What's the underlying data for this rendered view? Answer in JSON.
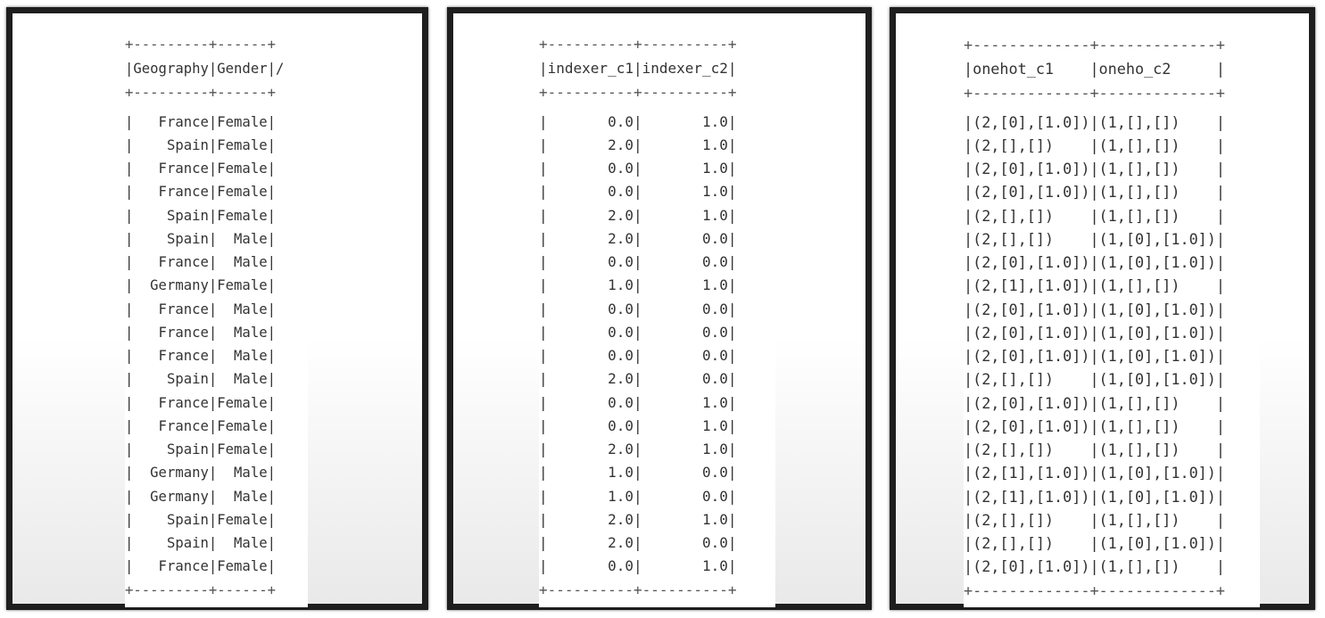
{
  "panels": [
    {
      "separator": "+---------+------+",
      "header": "|Geography|Gender|/",
      "rows": [
        "|   France|Female|",
        "|    Spain|Female|",
        "|   France|Female|",
        "|   France|Female|",
        "|    Spain|Female|",
        "|    Spain|  Male|",
        "|   France|  Male|",
        "|  Germany|Female|",
        "|   France|  Male|",
        "|   France|  Male|",
        "|   France|  Male|",
        "|    Spain|  Male|",
        "|   France|Female|",
        "|   France|Female|",
        "|    Spain|Female|",
        "|  Germany|  Male|",
        "|  Germany|  Male|",
        "|    Spain|Female|",
        "|    Spain|  Male|",
        "|   France|Female|"
      ]
    },
    {
      "separator": "+----------+----------+",
      "header": "|indexer_c1|indexer_c2|",
      "rows": [
        "|       0.0|       1.0|",
        "|       2.0|       1.0|",
        "|       0.0|       1.0|",
        "|       0.0|       1.0|",
        "|       2.0|       1.0|",
        "|       2.0|       0.0|",
        "|       0.0|       0.0|",
        "|       1.0|       1.0|",
        "|       0.0|       0.0|",
        "|       0.0|       0.0|",
        "|       0.0|       0.0|",
        "|       2.0|       0.0|",
        "|       0.0|       1.0|",
        "|       0.0|       1.0|",
        "|       2.0|       1.0|",
        "|       1.0|       0.0|",
        "|       1.0|       0.0|",
        "|       2.0|       1.0|",
        "|       2.0|       0.0|",
        "|       0.0|       1.0|"
      ]
    },
    {
      "separator": "+-------------+-------------+",
      "header": "|onehot_c1    |oneho_c2     |",
      "rows": [
        "|(2,[0],[1.0])|(1,[],[])    |",
        "|(2,[],[])    |(1,[],[])    |",
        "|(2,[0],[1.0])|(1,[],[])    |",
        "|(2,[0],[1.0])|(1,[],[])    |",
        "|(2,[],[])    |(1,[],[])    |",
        "|(2,[],[])    |(1,[0],[1.0])|",
        "|(2,[0],[1.0])|(1,[0],[1.0])|",
        "|(2,[1],[1.0])|(1,[],[])    |",
        "|(2,[0],[1.0])|(1,[0],[1.0])|",
        "|(2,[0],[1.0])|(1,[0],[1.0])|",
        "|(2,[0],[1.0])|(1,[0],[1.0])|",
        "|(2,[],[])    |(1,[0],[1.0])|",
        "|(2,[0],[1.0])|(1,[],[])    |",
        "|(2,[0],[1.0])|(1,[],[])    |",
        "|(2,[],[])    |(1,[],[])    |",
        "|(2,[1],[1.0])|(1,[0],[1.0])|",
        "|(2,[1],[1.0])|(1,[0],[1.0])|",
        "|(2,[],[])    |(1,[],[])    |",
        "|(2,[],[])    |(1,[0],[1.0])|",
        "|(2,[0],[1.0])|(1,[],[])    |"
      ]
    }
  ]
}
